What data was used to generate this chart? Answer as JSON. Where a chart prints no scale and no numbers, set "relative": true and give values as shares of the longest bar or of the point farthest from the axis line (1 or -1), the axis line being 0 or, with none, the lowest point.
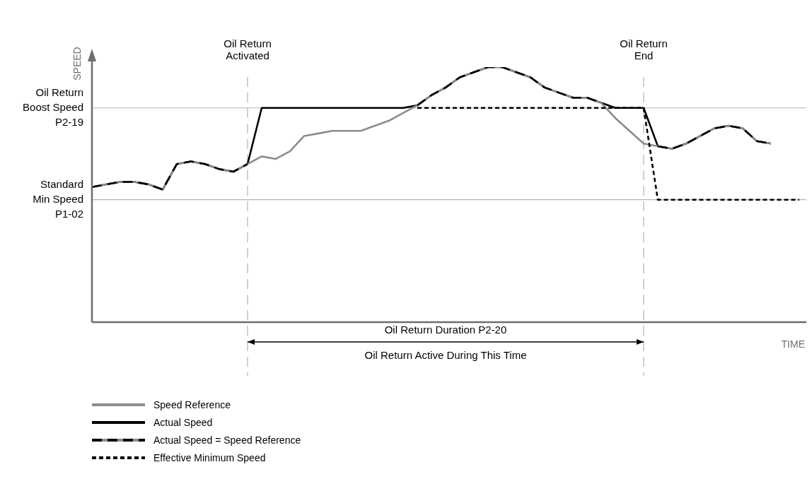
{
  "chart_data": {
    "type": "line",
    "relative": true,
    "xlabel": "TIME",
    "ylabel": "SPEED",
    "marker": "none",
    "legend": "bottom",
    "categories": [
      null,
      null,
      null,
      null,
      null,
      null,
      null,
      null,
      null,
      null,
      null,
      null,
      null,
      null,
      null,
      null,
      null,
      null,
      null,
      null,
      null,
      null,
      null,
      null,
      null,
      null,
      null,
      null,
      null,
      null,
      null,
      null,
      null,
      null,
      null,
      null,
      null,
      null,
      null,
      null,
      null,
      null,
      null,
      null,
      null,
      null,
      null,
      null,
      null,
      null,
      null
    ],
    "series": [
      {
        "name": "Speed Reference",
        "color": "#8c8c8c",
        "line_style": "solid",
        "values": [
          0.53,
          0.54,
          0.55,
          0.55,
          0.54,
          0.52,
          0.62,
          0.63,
          0.62,
          0.6,
          0.59,
          0.62,
          0.65,
          0.64,
          0.67,
          0.73,
          0.74,
          0.75,
          0.75,
          0.75,
          0.77,
          0.79,
          0.82,
          0.85,
          0.89,
          0.92,
          0.96,
          0.98,
          1.0,
          1.0,
          0.98,
          0.96,
          0.92,
          0.9,
          0.88,
          0.88,
          0.86,
          0.8,
          0.75,
          0.7,
          0.69,
          0.68,
          0.7,
          0.73,
          0.76,
          0.77,
          0.76,
          0.71,
          0.7,
          null,
          null
        ]
      },
      {
        "name": "Actual Speed",
        "color": "#000000",
        "line_style": "solid",
        "values": [
          0.53,
          0.54,
          0.55,
          0.55,
          0.54,
          0.52,
          0.62,
          0.63,
          0.62,
          0.6,
          0.59,
          0.62,
          0.84,
          0.84,
          0.84,
          0.84,
          0.84,
          0.84,
          0.84,
          0.84,
          0.84,
          0.84,
          0.84,
          0.85,
          0.89,
          0.92,
          0.96,
          0.98,
          1.0,
          1.0,
          0.98,
          0.96,
          0.92,
          0.9,
          0.88,
          0.88,
          0.86,
          0.84,
          0.84,
          0.84,
          0.69,
          0.68,
          0.7,
          0.73,
          0.76,
          0.77,
          0.76,
          0.71,
          0.7,
          null,
          null
        ]
      },
      {
        "name": "Actual Speed = Speed Reference",
        "color": "#000000",
        "line_style": "dashed",
        "values": [
          0.53,
          0.54,
          0.55,
          0.55,
          0.54,
          0.52,
          0.62,
          0.63,
          0.62,
          0.6,
          0.59,
          0.62,
          null,
          null,
          null,
          null,
          null,
          null,
          null,
          null,
          null,
          null,
          null,
          null,
          null,
          null,
          null,
          null,
          null,
          null,
          null,
          null,
          null,
          null,
          null,
          null,
          null,
          null,
          null,
          null,
          null,
          null,
          null,
          null,
          null,
          null,
          null,
          null,
          null,
          null,
          null
        ]
      },
      {
        "color": "#000000",
        "line_style": "dashed",
        "values": [
          null,
          null,
          null,
          null,
          null,
          null,
          null,
          null,
          null,
          null,
          null,
          null,
          null,
          null,
          null,
          null,
          null,
          null,
          null,
          null,
          null,
          null,
          null,
          0.85,
          0.89,
          0.92,
          0.96,
          0.98,
          1.0,
          1.0,
          0.98,
          0.96,
          0.92,
          0.9,
          0.88,
          0.88,
          0.86,
          null,
          null,
          null,
          null,
          null,
          null,
          null,
          null,
          null,
          null,
          null,
          null,
          null,
          null
        ]
      },
      {
        "color": "#000000",
        "line_style": "dashed",
        "values": [
          null,
          null,
          null,
          null,
          null,
          null,
          null,
          null,
          null,
          null,
          null,
          null,
          null,
          null,
          null,
          null,
          null,
          null,
          null,
          null,
          null,
          null,
          null,
          null,
          null,
          null,
          null,
          null,
          null,
          null,
          null,
          null,
          null,
          null,
          null,
          null,
          null,
          null,
          null,
          null,
          0.69,
          0.68,
          0.7,
          0.73,
          0.76,
          0.77,
          0.76,
          0.71,
          0.7,
          null,
          null
        ]
      },
      {
        "name": "Effective Minimum Speed",
        "color": "#000000",
        "line_style": "dotted",
        "values": [
          null,
          null,
          null,
          null,
          null,
          null,
          null,
          null,
          null,
          null,
          null,
          null,
          null,
          null,
          null,
          null,
          null,
          null,
          null,
          null,
          null,
          null,
          null,
          0.84,
          0.84,
          0.84,
          0.84,
          0.84,
          0.84,
          0.84,
          0.84,
          0.84,
          0.84,
          0.84,
          0.84,
          0.84,
          0.84,
          0.84,
          0.84,
          0.84,
          0.48,
          0.48,
          0.48,
          0.48,
          0.48,
          0.48,
          0.48,
          0.48,
          0.48,
          0.48,
          0.48
        ]
      }
    ],
    "ref_lines": [
      {
        "axis": "y",
        "value": 0.84,
        "label": "Oil Return Boost Speed P2-19",
        "color": "#b3b3b3"
      },
      {
        "axis": "y",
        "value": 0.48,
        "label": "Standard Min Speed P1-02",
        "color": "#b3b3b3"
      }
    ],
    "annotations": [
      "Oil Return Activated",
      "Oil Return End",
      "Oil Return Duration P2-20",
      "Oil Return Active During This Time"
    ]
  }
}
